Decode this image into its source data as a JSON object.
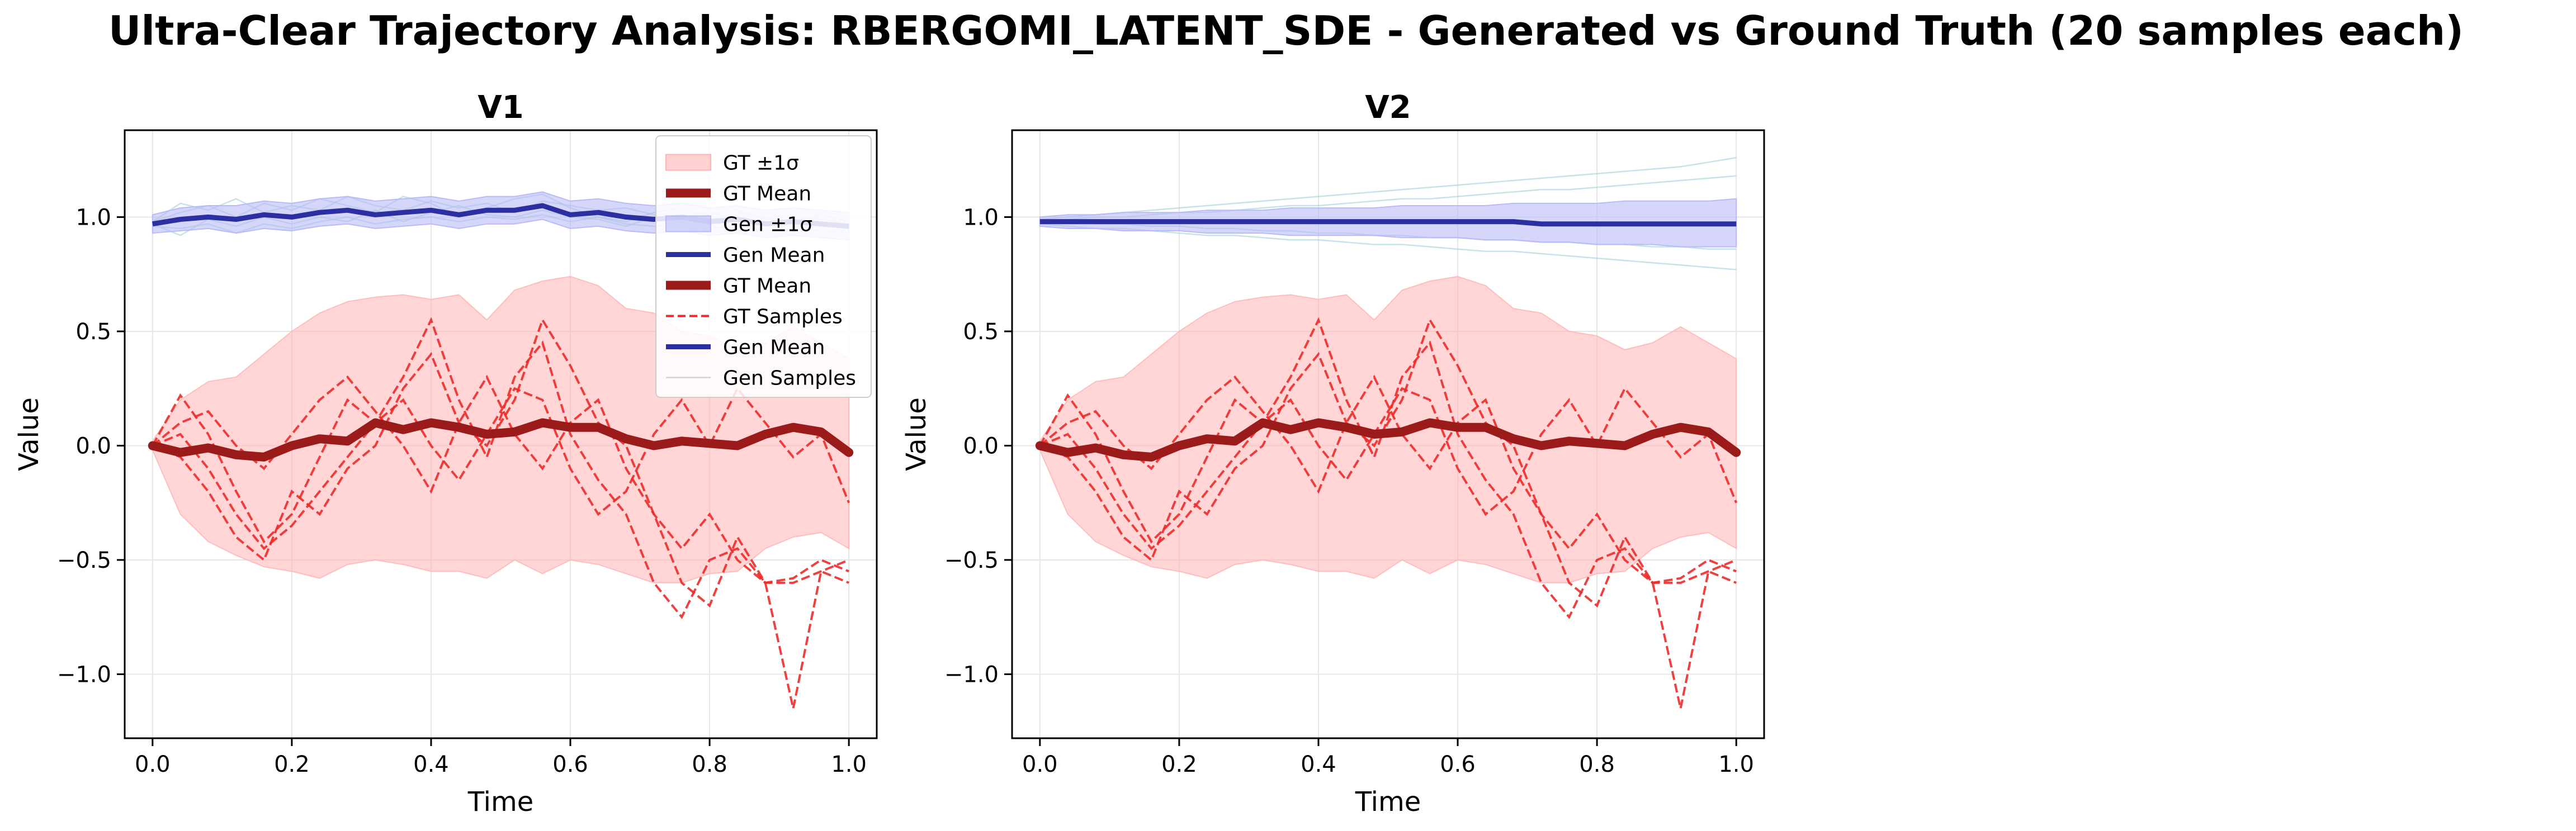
{
  "figure": {
    "title": "Ultra-Clear Trajectory Analysis: RBERGOMI_LATENT_SDE - Generated vs Ground Truth (20 samples each)"
  },
  "colors": {
    "gt_mean": "#9b1b1b",
    "gt_band": "#ffb3b3",
    "gt_samples": "#ee2a2a",
    "gen_mean": "#2b2fa0",
    "gen_band": "#b9baf7",
    "gen_samples": "#9fd1d8",
    "grid": "#e6e6e6",
    "axis": "#000000"
  },
  "chart_data": [
    {
      "type": "line",
      "title": "V1",
      "xlabel": "Time",
      "ylabel": "Value",
      "xlim": [
        -0.04,
        1.04
      ],
      "ylim": [
        -1.28,
        1.38
      ],
      "xticks": [
        0.0,
        0.2,
        0.4,
        0.6,
        0.8,
        1.0
      ],
      "xtick_labels": [
        "0.0",
        "0.2",
        "0.4",
        "0.6",
        "0.8",
        "1.0"
      ],
      "yticks": [
        -1.0,
        -0.5,
        0.0,
        0.5,
        1.0
      ],
      "ytick_labels": [
        "−1.0",
        "−0.5",
        "0.0",
        "0.5",
        "1.0"
      ],
      "grid": true,
      "legend": {
        "placement": "top-right",
        "entries": [
          {
            "label": "GT ±1σ",
            "kind": "band",
            "color": "gt_band"
          },
          {
            "label": "GT Mean",
            "kind": "thick",
            "color": "gt_mean"
          },
          {
            "label": "Gen ±1σ",
            "kind": "band",
            "color": "gen_band"
          },
          {
            "label": "Gen Mean",
            "kind": "line",
            "color": "gen_mean"
          },
          {
            "label": "GT Mean",
            "kind": "thick",
            "color": "gt_mean"
          },
          {
            "label": "GT Samples",
            "kind": "dashed",
            "color": "gt_samples"
          },
          {
            "label": "Gen Mean",
            "kind": "line",
            "color": "gen_mean"
          },
          {
            "label": "Gen Samples",
            "kind": "thin",
            "color": "#cccccc"
          }
        ]
      },
      "x": [
        0.0,
        0.04,
        0.08,
        0.12,
        0.16,
        0.2,
        0.24,
        0.28,
        0.32,
        0.36,
        0.4,
        0.44,
        0.48,
        0.52,
        0.56,
        0.6,
        0.64,
        0.68,
        0.72,
        0.76,
        0.8,
        0.84,
        0.88,
        0.92,
        0.96,
        1.0
      ],
      "series": [
        {
          "role": "gt_mean",
          "values": [
            0.0,
            -0.03,
            -0.01,
            -0.04,
            -0.05,
            0.0,
            0.03,
            0.02,
            0.1,
            0.07,
            0.1,
            0.08,
            0.05,
            0.06,
            0.1,
            0.08,
            0.08,
            0.03,
            0.0,
            0.02,
            0.01,
            0.0,
            0.05,
            0.08,
            0.06,
            -0.03
          ]
        },
        {
          "role": "gt_upper",
          "values": [
            0.02,
            0.2,
            0.28,
            0.3,
            0.4,
            0.5,
            0.58,
            0.63,
            0.65,
            0.66,
            0.64,
            0.66,
            0.55,
            0.68,
            0.72,
            0.74,
            0.7,
            0.6,
            0.58,
            0.5,
            0.48,
            0.42,
            0.45,
            0.52,
            0.45,
            0.38
          ]
        },
        {
          "role": "gt_lower",
          "values": [
            -0.02,
            -0.3,
            -0.42,
            -0.48,
            -0.53,
            -0.55,
            -0.58,
            -0.52,
            -0.5,
            -0.52,
            -0.55,
            -0.55,
            -0.58,
            -0.5,
            -0.56,
            -0.5,
            -0.52,
            -0.56,
            -0.6,
            -0.6,
            -0.56,
            -0.55,
            -0.45,
            -0.4,
            -0.38,
            -0.45
          ]
        },
        {
          "role": "gen_mean",
          "values": [
            0.97,
            0.99,
            1.0,
            0.99,
            1.01,
            1.0,
            1.02,
            1.03,
            1.01,
            1.02,
            1.03,
            1.01,
            1.03,
            1.03,
            1.05,
            1.01,
            1.02,
            1.0,
            0.99,
            1.0,
            0.98,
            0.99,
            0.97,
            0.98,
            0.97,
            0.96
          ]
        },
        {
          "role": "gen_upper",
          "values": [
            1.01,
            1.04,
            1.05,
            1.05,
            1.07,
            1.06,
            1.08,
            1.09,
            1.07,
            1.08,
            1.09,
            1.07,
            1.09,
            1.09,
            1.11,
            1.07,
            1.08,
            1.06,
            1.05,
            1.06,
            1.04,
            1.05,
            1.03,
            1.04,
            1.03,
            1.02
          ]
        },
        {
          "role": "gen_lower",
          "values": [
            0.93,
            0.94,
            0.95,
            0.93,
            0.95,
            0.94,
            0.96,
            0.97,
            0.95,
            0.96,
            0.97,
            0.95,
            0.97,
            0.97,
            0.99,
            0.95,
            0.96,
            0.94,
            0.93,
            0.94,
            0.92,
            0.93,
            0.91,
            0.92,
            0.91,
            0.9
          ]
        },
        {
          "role": "gt_sample",
          "values": [
            0.0,
            0.22,
            0.05,
            -0.2,
            -0.42,
            -0.3,
            -0.05,
            0.2,
            0.1,
            0.3,
            0.55,
            0.2,
            -0.05,
            0.3,
            0.45,
            0.05,
            -0.15,
            -0.3,
            -0.6,
            -0.75,
            -0.5,
            -0.45,
            -0.6,
            -1.15,
            -0.55,
            -0.6
          ]
        },
        {
          "role": "gt_sample",
          "values": [
            0.0,
            -0.05,
            -0.2,
            -0.4,
            -0.5,
            -0.2,
            -0.3,
            -0.1,
            0.0,
            0.25,
            0.4,
            0.1,
            0.0,
            0.2,
            0.55,
            0.35,
            0.1,
            0.0,
            -0.3,
            -0.6,
            -0.7,
            -0.4,
            -0.6,
            -0.58,
            -0.5,
            -0.55
          ]
        },
        {
          "role": "gt_sample",
          "values": [
            0.0,
            0.1,
            0.15,
            0.0,
            -0.1,
            0.05,
            0.2,
            0.3,
            0.15,
            0.0,
            -0.2,
            0.1,
            0.3,
            0.05,
            -0.1,
            0.1,
            0.2,
            -0.1,
            -0.3,
            -0.45,
            -0.3,
            -0.5,
            -0.6,
            -0.6,
            -0.55,
            -0.5
          ]
        },
        {
          "role": "gt_sample",
          "values": [
            0.0,
            0.05,
            -0.1,
            -0.3,
            -0.45,
            -0.35,
            -0.2,
            -0.05,
            0.1,
            0.2,
            0.0,
            -0.15,
            0.05,
            0.25,
            0.2,
            -0.1,
            -0.3,
            -0.2,
            0.05,
            0.2,
            0.0,
            0.25,
            0.1,
            -0.05,
            0.05,
            -0.25
          ]
        },
        {
          "role": "gen_sample",
          "values": [
            0.98,
            1.02,
            1.05,
            1.0,
            1.06,
            1.03,
            1.08,
            1.05,
            1.02,
            1.09,
            1.06,
            1.0,
            1.04,
            1.08,
            1.1,
            1.04,
            1.0,
            0.98,
            1.02,
            1.04,
            0.99,
            1.02,
            1.0,
            0.98,
            1.01,
            0.98
          ]
        },
        {
          "role": "gen_sample",
          "values": [
            0.96,
            0.95,
            0.97,
            0.93,
            0.97,
            0.95,
            0.98,
            1.0,
            0.97,
            0.99,
            1.0,
            0.98,
            1.0,
            0.99,
            1.01,
            0.98,
            1.0,
            0.97,
            0.96,
            0.97,
            0.95,
            0.96,
            0.94,
            0.95,
            0.94,
            0.93
          ]
        },
        {
          "role": "gen_sample",
          "values": [
            0.98,
            1.06,
            1.03,
            1.08,
            1.02,
            1.05,
            1.03,
            1.09,
            1.05,
            1.03,
            1.07,
            1.04,
            1.06,
            1.02,
            1.07,
            1.05,
            1.03,
            1.04,
            1.01,
            1.02,
            1.01,
            1.03,
            0.99,
            1.0,
            0.99,
            0.97
          ]
        },
        {
          "role": "gen_sample",
          "values": [
            0.97,
            0.92,
            0.99,
            0.96,
            1.0,
            0.97,
            1.0,
            0.98,
            1.03,
            0.98,
            1.02,
            1.05,
            1.01,
            1.0,
            1.03,
            1.0,
            0.99,
            0.96,
            1.0,
            0.98,
            0.97,
            0.98,
            0.97,
            0.96,
            0.96,
            0.95
          ]
        }
      ]
    },
    {
      "type": "line",
      "title": "V2",
      "xlabel": "Time",
      "ylabel": "Value",
      "xlim": [
        -0.04,
        1.04
      ],
      "ylim": [
        -1.28,
        1.38
      ],
      "xticks": [
        0.0,
        0.2,
        0.4,
        0.6,
        0.8,
        1.0
      ],
      "xtick_labels": [
        "0.0",
        "0.2",
        "0.4",
        "0.6",
        "0.8",
        "1.0"
      ],
      "yticks": [
        -1.0,
        -0.5,
        0.0,
        0.5,
        1.0
      ],
      "ytick_labels": [
        "−1.0",
        "−0.5",
        "0.0",
        "0.5",
        "1.0"
      ],
      "grid": true,
      "x": [
        0.0,
        0.04,
        0.08,
        0.12,
        0.16,
        0.2,
        0.24,
        0.28,
        0.32,
        0.36,
        0.4,
        0.44,
        0.48,
        0.52,
        0.56,
        0.6,
        0.64,
        0.68,
        0.72,
        0.76,
        0.8,
        0.84,
        0.88,
        0.92,
        0.96,
        1.0
      ],
      "series": [
        {
          "role": "gt_mean",
          "values": [
            0.0,
            -0.03,
            -0.01,
            -0.04,
            -0.05,
            0.0,
            0.03,
            0.02,
            0.1,
            0.07,
            0.1,
            0.08,
            0.05,
            0.06,
            0.1,
            0.08,
            0.08,
            0.03,
            0.0,
            0.02,
            0.01,
            0.0,
            0.05,
            0.08,
            0.06,
            -0.03
          ]
        },
        {
          "role": "gt_upper",
          "values": [
            0.02,
            0.2,
            0.28,
            0.3,
            0.4,
            0.5,
            0.58,
            0.63,
            0.65,
            0.66,
            0.64,
            0.66,
            0.55,
            0.68,
            0.72,
            0.74,
            0.7,
            0.6,
            0.58,
            0.5,
            0.48,
            0.42,
            0.45,
            0.52,
            0.45,
            0.38
          ]
        },
        {
          "role": "gt_lower",
          "values": [
            -0.02,
            -0.3,
            -0.42,
            -0.48,
            -0.53,
            -0.55,
            -0.58,
            -0.52,
            -0.5,
            -0.52,
            -0.55,
            -0.55,
            -0.58,
            -0.5,
            -0.56,
            -0.5,
            -0.52,
            -0.56,
            -0.6,
            -0.6,
            -0.56,
            -0.55,
            -0.45,
            -0.4,
            -0.38,
            -0.45
          ]
        },
        {
          "role": "gen_mean",
          "values": [
            0.98,
            0.98,
            0.98,
            0.98,
            0.98,
            0.98,
            0.98,
            0.98,
            0.98,
            0.98,
            0.98,
            0.98,
            0.98,
            0.98,
            0.98,
            0.98,
            0.98,
            0.98,
            0.97,
            0.97,
            0.97,
            0.97,
            0.97,
            0.97,
            0.97,
            0.97
          ]
        },
        {
          "role": "gen_upper",
          "values": [
            1.0,
            1.01,
            1.01,
            1.02,
            1.02,
            1.02,
            1.03,
            1.03,
            1.03,
            1.04,
            1.04,
            1.04,
            1.04,
            1.05,
            1.05,
            1.05,
            1.05,
            1.06,
            1.06,
            1.06,
            1.06,
            1.07,
            1.07,
            1.07,
            1.07,
            1.08
          ]
        },
        {
          "role": "gen_lower",
          "values": [
            0.96,
            0.95,
            0.95,
            0.94,
            0.94,
            0.94,
            0.93,
            0.93,
            0.93,
            0.92,
            0.92,
            0.92,
            0.92,
            0.91,
            0.91,
            0.91,
            0.9,
            0.9,
            0.89,
            0.89,
            0.88,
            0.88,
            0.88,
            0.87,
            0.87,
            0.87
          ]
        },
        {
          "role": "gt_sample",
          "values": [
            0.0,
            0.22,
            0.05,
            -0.2,
            -0.42,
            -0.3,
            -0.05,
            0.2,
            0.1,
            0.3,
            0.55,
            0.2,
            -0.05,
            0.3,
            0.45,
            0.05,
            -0.15,
            -0.3,
            -0.6,
            -0.75,
            -0.5,
            -0.45,
            -0.6,
            -1.15,
            -0.55,
            -0.6
          ]
        },
        {
          "role": "gt_sample",
          "values": [
            0.0,
            -0.05,
            -0.2,
            -0.4,
            -0.5,
            -0.2,
            -0.3,
            -0.1,
            0.0,
            0.25,
            0.4,
            0.1,
            0.0,
            0.2,
            0.55,
            0.35,
            0.1,
            0.0,
            -0.3,
            -0.6,
            -0.7,
            -0.4,
            -0.6,
            -0.58,
            -0.5,
            -0.55
          ]
        },
        {
          "role": "gt_sample",
          "values": [
            0.0,
            0.1,
            0.15,
            0.0,
            -0.1,
            0.05,
            0.2,
            0.3,
            0.15,
            0.0,
            -0.2,
            0.1,
            0.3,
            0.05,
            -0.1,
            0.1,
            0.2,
            -0.1,
            -0.3,
            -0.45,
            -0.3,
            -0.5,
            -0.6,
            -0.6,
            -0.55,
            -0.5
          ]
        },
        {
          "role": "gt_sample",
          "values": [
            0.0,
            0.05,
            -0.1,
            -0.3,
            -0.45,
            -0.35,
            -0.2,
            -0.05,
            0.1,
            0.2,
            0.0,
            -0.15,
            0.05,
            0.25,
            0.2,
            -0.1,
            -0.3,
            -0.2,
            0.05,
            0.2,
            0.0,
            0.25,
            0.1,
            -0.05,
            0.05,
            -0.25
          ]
        },
        {
          "role": "gen_sample",
          "values": [
            0.99,
            1.0,
            1.01,
            1.02,
            1.03,
            1.04,
            1.05,
            1.06,
            1.07,
            1.08,
            1.09,
            1.1,
            1.11,
            1.12,
            1.13,
            1.14,
            1.15,
            1.16,
            1.17,
            1.18,
            1.19,
            1.2,
            1.21,
            1.22,
            1.24,
            1.26
          ]
        },
        {
          "role": "gen_sample",
          "values": [
            0.98,
            0.99,
            1.0,
            1.0,
            1.01,
            1.02,
            1.02,
            1.03,
            1.04,
            1.05,
            1.05,
            1.06,
            1.07,
            1.08,
            1.08,
            1.09,
            1.1,
            1.11,
            1.12,
            1.12,
            1.13,
            1.14,
            1.15,
            1.16,
            1.17,
            1.18
          ]
        },
        {
          "role": "gen_sample",
          "values": [
            0.97,
            0.96,
            0.95,
            0.95,
            0.94,
            0.93,
            0.92,
            0.92,
            0.91,
            0.9,
            0.9,
            0.89,
            0.88,
            0.88,
            0.87,
            0.86,
            0.85,
            0.85,
            0.84,
            0.83,
            0.82,
            0.81,
            0.8,
            0.79,
            0.78,
            0.77
          ]
        },
        {
          "role": "gen_sample",
          "values": [
            0.98,
            0.98,
            0.97,
            0.97,
            0.96,
            0.96,
            0.95,
            0.95,
            0.94,
            0.94,
            0.93,
            0.93,
            0.92,
            0.92,
            0.91,
            0.91,
            0.9,
            0.9,
            0.89,
            0.89,
            0.88,
            0.88,
            0.87,
            0.87,
            0.86,
            0.86
          ]
        }
      ]
    }
  ]
}
